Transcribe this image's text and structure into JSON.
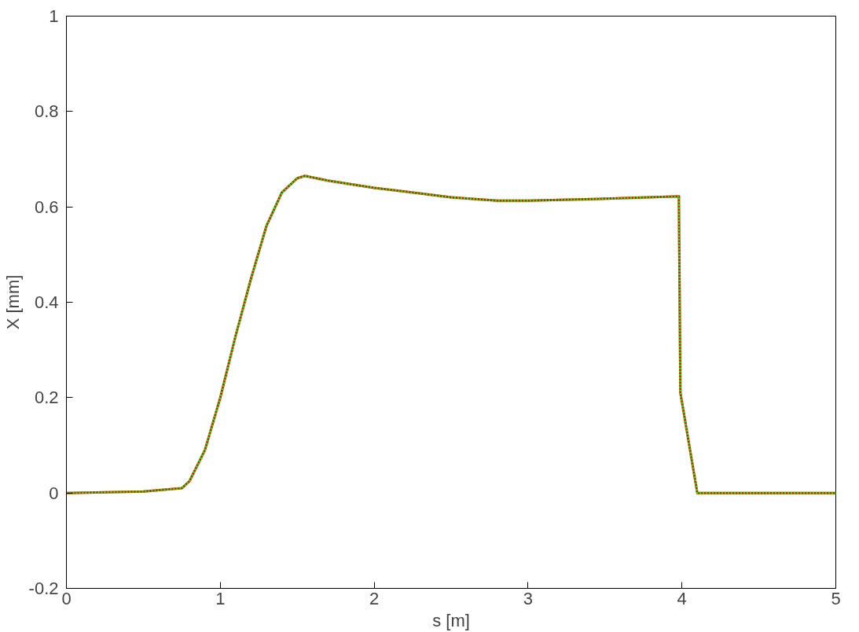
{
  "chart_data": {
    "type": "line",
    "xlabel": "s [m]",
    "ylabel": "X [mm]",
    "x": [
      0,
      0.5,
      0.75,
      0.8,
      0.9,
      1.0,
      1.1,
      1.2,
      1.3,
      1.4,
      1.5,
      1.55,
      1.7,
      2.0,
      2.5,
      2.8,
      3.0,
      3.5,
      3.98,
      3.99,
      4.1,
      5.0
    ],
    "series": [
      {
        "color": "#ff0000",
        "line_style": "solid",
        "values": [
          0,
          0.003,
          0.01,
          0.025,
          0.09,
          0.2,
          0.33,
          0.45,
          0.56,
          0.63,
          0.66,
          0.665,
          0.655,
          0.64,
          0.62,
          0.613,
          0.613,
          0.617,
          0.622,
          0.21,
          0,
          0
        ]
      },
      {
        "color": "#00ff00",
        "line_style": "dotted",
        "values": [
          0,
          0.003,
          0.01,
          0.025,
          0.09,
          0.2,
          0.33,
          0.45,
          0.56,
          0.63,
          0.66,
          0.665,
          0.655,
          0.64,
          0.62,
          0.613,
          0.613,
          0.617,
          0.622,
          0.21,
          0,
          0
        ]
      }
    ],
    "xlim": [
      0,
      5
    ],
    "ylim": [
      -0.2,
      1
    ],
    "xticks": [
      0,
      1,
      2,
      3,
      4,
      5
    ],
    "yticks": [
      -0.2,
      0,
      0.2,
      0.4,
      0.6,
      0.8,
      1
    ],
    "grid": false
  }
}
